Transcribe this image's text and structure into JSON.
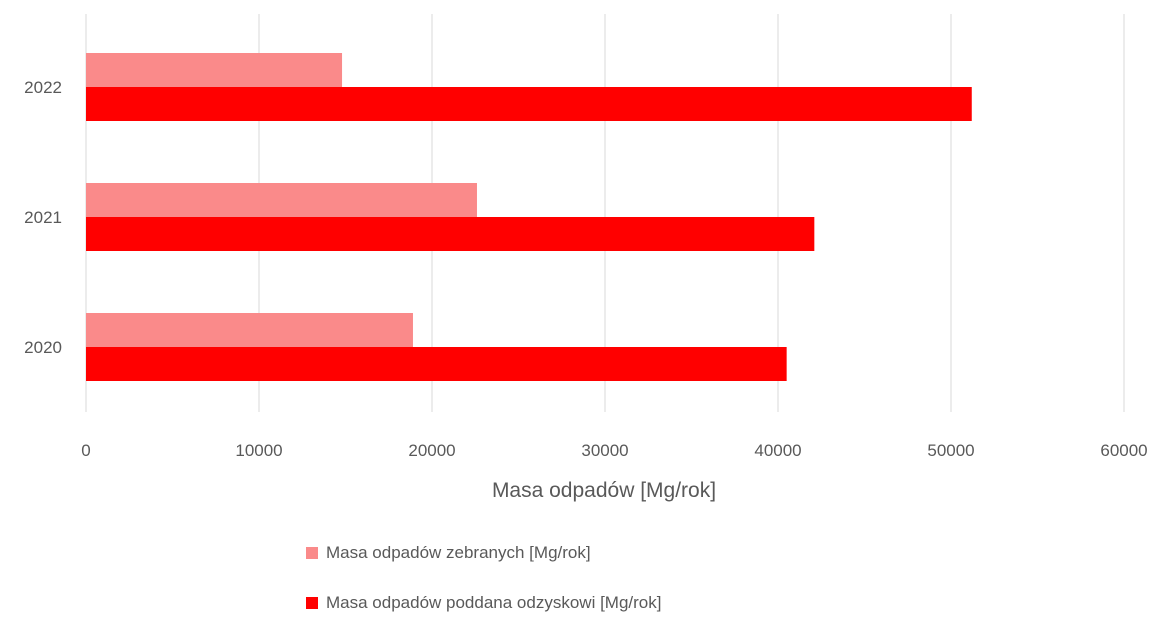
{
  "chart_data": {
    "type": "bar",
    "orientation": "horizontal",
    "categories": [
      "2022",
      "2021",
      "2020"
    ],
    "series": [
      {
        "name": "Masa odpadów zebranych [Mg/rok]",
        "color": "#fa8a8a",
        "values": [
          14800,
          22600,
          18900
        ]
      },
      {
        "name": "Masa odpadów poddana odzyskowi [Mg/rok]",
        "color": "#ff0000",
        "values": [
          51200,
          42100,
          40500
        ]
      }
    ],
    "xlabel": "Masa odpadów [Mg/rok]",
    "ylabel": "",
    "xlim": [
      0,
      60000
    ],
    "xticks": [
      "0",
      "10000",
      "20000",
      "30000",
      "40000",
      "50000",
      "60000"
    ],
    "grid": "vertical",
    "legend_position": "bottom"
  }
}
